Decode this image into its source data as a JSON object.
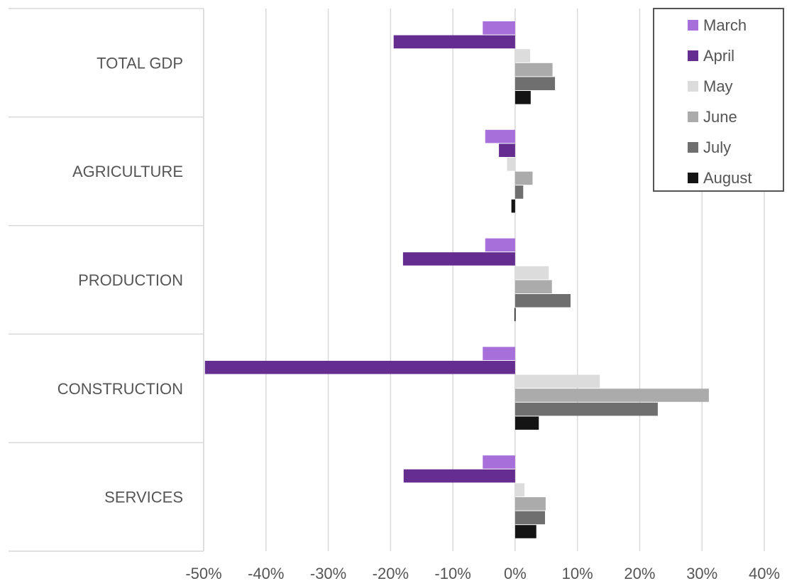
{
  "chart_data": {
    "type": "bar",
    "orientation": "horizontal",
    "categories": [
      "TOTAL GDP",
      "AGRICULTURE",
      "PRODUCTION",
      "CONSTRUCTION",
      "SERVICES"
    ],
    "series": [
      {
        "name": "March",
        "color": "#a66fd9",
        "values": [
          -5.2,
          -4.8,
          -4.8,
          -5.2,
          -5.2
        ]
      },
      {
        "name": "April",
        "color": "#652d90",
        "values": [
          -19.5,
          -2.6,
          -18.0,
          -49.8,
          -17.9
        ]
      },
      {
        "name": "May",
        "color": "#dcdcdc",
        "values": [
          2.4,
          -1.3,
          5.4,
          13.6,
          1.5
        ]
      },
      {
        "name": "June",
        "color": "#ababab",
        "values": [
          6.0,
          2.8,
          5.9,
          31.1,
          4.9
        ]
      },
      {
        "name": "July",
        "color": "#6f6f6f",
        "values": [
          6.4,
          1.3,
          8.9,
          22.9,
          4.8
        ]
      },
      {
        "name": "August",
        "color": "#141414",
        "values": [
          2.5,
          -0.6,
          -0.1,
          3.8,
          3.4
        ]
      }
    ],
    "xticks": [
      "-50%",
      "-40%",
      "-30%",
      "-20%",
      "-10%",
      "0%",
      "10%",
      "20%",
      "30%",
      "40%"
    ],
    "xlim": [
      -50,
      40
    ],
    "xgrid": true,
    "legend_position": "top-right"
  }
}
